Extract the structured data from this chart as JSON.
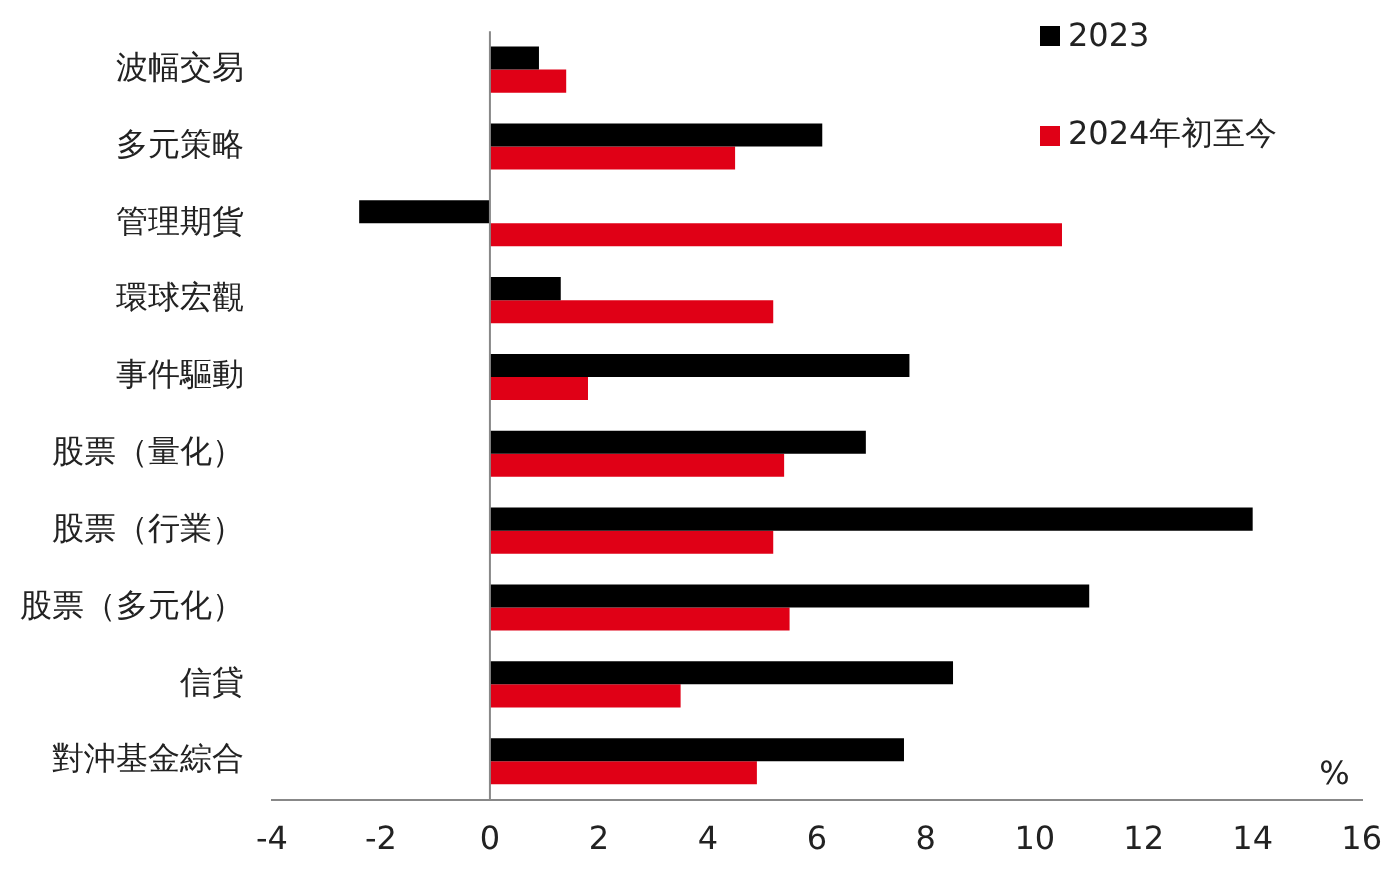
{
  "chart_data": {
    "type": "bar",
    "orientation": "horizontal",
    "xlabel": "%",
    "categories": [
      "波幅交易",
      "多元策略",
      "管理期貨",
      "環球宏觀",
      "事件驅動",
      "股票（量化）",
      "股票（行業）",
      "股票（多元化）",
      "信貸",
      "對沖基金綜合"
    ],
    "series": [
      {
        "name": "2023",
        "color": "#000000",
        "values": [
          0.9,
          6.1,
          -2.4,
          1.3,
          7.7,
          6.9,
          14.0,
          11.0,
          8.5,
          7.6
        ]
      },
      {
        "name": "2024年初至今",
        "color": "#e00016",
        "values": [
          1.4,
          4.5,
          10.5,
          5.2,
          1.8,
          5.4,
          5.2,
          5.5,
          3.5,
          4.9
        ]
      }
    ],
    "xlim": [
      -4,
      16
    ],
    "xticks": [
      -4,
      -2,
      0,
      2,
      4,
      6,
      8,
      10,
      12,
      14,
      16
    ],
    "grid": false,
    "legend": "top right",
    "ref_lines": [
      {
        "axis": "x",
        "value": 0,
        "color": "#888888"
      }
    ]
  }
}
